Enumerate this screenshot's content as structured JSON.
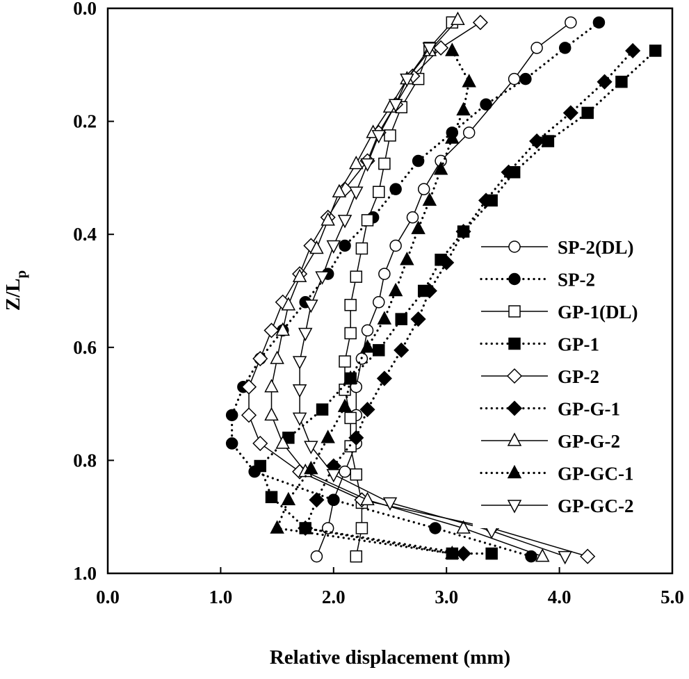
{
  "chart_data": {
    "type": "line",
    "title": "",
    "xlabel": "Relative displacement (mm)",
    "ylabel_main": "Z/L",
    "ylabel_sub": "p",
    "xlim": [
      0.0,
      5.0
    ],
    "ylim": [
      0.0,
      1.0
    ],
    "y_inverted": true,
    "x_axis_position": "bottom",
    "grid": false,
    "legend_position": "right",
    "xticks": [
      {
        "value": 0.0,
        "label": "0.0"
      },
      {
        "value": 1.0,
        "label": "1.0"
      },
      {
        "value": 2.0,
        "label": "2.0"
      },
      {
        "value": 3.0,
        "label": "3.0"
      },
      {
        "value": 4.0,
        "label": "4.0"
      },
      {
        "value": 5.0,
        "label": "5.0"
      }
    ],
    "yticks": [
      {
        "value": 0.0,
        "label": "0.0"
      },
      {
        "value": 0.2,
        "label": "0.2"
      },
      {
        "value": 0.4,
        "label": "0.4"
      },
      {
        "value": 0.6,
        "label": "0.6"
      },
      {
        "value": 0.8,
        "label": "0.8"
      },
      {
        "value": 1.0,
        "label": "1.0"
      }
    ],
    "series": [
      {
        "name": "SP-2(DL)",
        "marker": "circle",
        "fill": "open",
        "line": "solid",
        "points": [
          [
            4.1,
            0.025
          ],
          [
            3.8,
            0.07
          ],
          [
            3.6,
            0.125
          ],
          [
            3.2,
            0.22
          ],
          [
            2.95,
            0.27
          ],
          [
            2.8,
            0.32
          ],
          [
            2.7,
            0.37
          ],
          [
            2.55,
            0.42
          ],
          [
            2.45,
            0.47
          ],
          [
            2.4,
            0.52
          ],
          [
            2.3,
            0.57
          ],
          [
            2.25,
            0.62
          ],
          [
            2.2,
            0.67
          ],
          [
            2.2,
            0.72
          ],
          [
            2.2,
            0.77
          ],
          [
            2.1,
            0.82
          ],
          [
            2.0,
            0.87
          ],
          [
            1.95,
            0.92
          ],
          [
            1.85,
            0.97
          ]
        ]
      },
      {
        "name": "SP-2",
        "marker": "circle",
        "fill": "filled",
        "line": "dotted",
        "points": [
          [
            4.35,
            0.025
          ],
          [
            4.05,
            0.07
          ],
          [
            3.7,
            0.125
          ],
          [
            3.35,
            0.17
          ],
          [
            3.05,
            0.22
          ],
          [
            2.75,
            0.27
          ],
          [
            2.55,
            0.32
          ],
          [
            2.35,
            0.37
          ],
          [
            2.1,
            0.42
          ],
          [
            1.95,
            0.47
          ],
          [
            1.75,
            0.52
          ],
          [
            1.55,
            0.57
          ],
          [
            1.35,
            0.62
          ],
          [
            1.2,
            0.67
          ],
          [
            1.1,
            0.72
          ],
          [
            1.1,
            0.77
          ],
          [
            1.3,
            0.82
          ],
          [
            2.0,
            0.87
          ],
          [
            2.9,
            0.92
          ],
          [
            3.75,
            0.97
          ]
        ]
      },
      {
        "name": "GP-1(DL)",
        "marker": "square",
        "fill": "open",
        "line": "solid",
        "points": [
          [
            3.05,
            0.025
          ],
          [
            2.85,
            0.07
          ],
          [
            2.75,
            0.125
          ],
          [
            2.6,
            0.175
          ],
          [
            2.5,
            0.225
          ],
          [
            2.45,
            0.275
          ],
          [
            2.4,
            0.325
          ],
          [
            2.3,
            0.375
          ],
          [
            2.25,
            0.425
          ],
          [
            2.2,
            0.475
          ],
          [
            2.15,
            0.525
          ],
          [
            2.15,
            0.575
          ],
          [
            2.1,
            0.625
          ],
          [
            2.1,
            0.675
          ],
          [
            2.15,
            0.725
          ],
          [
            2.15,
            0.775
          ],
          [
            2.2,
            0.825
          ],
          [
            2.25,
            0.875
          ],
          [
            2.25,
            0.92
          ],
          [
            2.2,
            0.97
          ]
        ]
      },
      {
        "name": "GP-1",
        "marker": "square",
        "fill": "filled",
        "line": "dotted",
        "points": [
          [
            4.85,
            0.075
          ],
          [
            4.55,
            0.13
          ],
          [
            4.25,
            0.185
          ],
          [
            3.9,
            0.235
          ],
          [
            3.6,
            0.29
          ],
          [
            3.4,
            0.34
          ],
          [
            3.15,
            0.395
          ],
          [
            2.95,
            0.445
          ],
          [
            2.8,
            0.5
          ],
          [
            2.6,
            0.55
          ],
          [
            2.4,
            0.605
          ],
          [
            2.15,
            0.655
          ],
          [
            1.9,
            0.71
          ],
          [
            1.6,
            0.76
          ],
          [
            1.35,
            0.81
          ],
          [
            1.45,
            0.865
          ],
          [
            1.75,
            0.92
          ],
          [
            3.05,
            0.965
          ],
          [
            3.4,
            0.965
          ]
        ]
      },
      {
        "name": "GP-2",
        "marker": "diamond",
        "fill": "open",
        "line": "solid",
        "points": [
          [
            3.3,
            0.025
          ],
          [
            2.95,
            0.07
          ],
          [
            2.7,
            0.12
          ],
          [
            2.55,
            0.17
          ],
          [
            2.4,
            0.22
          ],
          [
            2.3,
            0.27
          ],
          [
            2.1,
            0.32
          ],
          [
            1.95,
            0.37
          ],
          [
            1.8,
            0.42
          ],
          [
            1.7,
            0.47
          ],
          [
            1.55,
            0.52
          ],
          [
            1.45,
            0.57
          ],
          [
            1.35,
            0.62
          ],
          [
            1.25,
            0.67
          ],
          [
            1.25,
            0.72
          ],
          [
            1.35,
            0.77
          ],
          [
            1.7,
            0.82
          ],
          [
            2.25,
            0.87
          ],
          [
            3.4,
            0.92
          ],
          [
            4.25,
            0.97
          ]
        ]
      },
      {
        "name": "GP-G-1",
        "marker": "diamond",
        "fill": "filled",
        "line": "dotted",
        "points": [
          [
            4.65,
            0.075
          ],
          [
            4.4,
            0.13
          ],
          [
            4.1,
            0.185
          ],
          [
            3.8,
            0.235
          ],
          [
            3.55,
            0.29
          ],
          [
            3.35,
            0.34
          ],
          [
            3.15,
            0.395
          ],
          [
            3.0,
            0.45
          ],
          [
            2.85,
            0.5
          ],
          [
            2.75,
            0.55
          ],
          [
            2.6,
            0.605
          ],
          [
            2.45,
            0.655
          ],
          [
            2.3,
            0.71
          ],
          [
            2.2,
            0.76
          ],
          [
            2.0,
            0.81
          ],
          [
            1.85,
            0.87
          ],
          [
            1.75,
            0.92
          ],
          [
            3.15,
            0.965
          ]
        ]
      },
      {
        "name": "GP-G-2",
        "marker": "triangle-up",
        "fill": "open",
        "line": "solid",
        "points": [
          [
            3.1,
            0.02
          ],
          [
            2.85,
            0.075
          ],
          [
            2.65,
            0.125
          ],
          [
            2.5,
            0.175
          ],
          [
            2.35,
            0.22
          ],
          [
            2.2,
            0.275
          ],
          [
            2.05,
            0.325
          ],
          [
            1.95,
            0.375
          ],
          [
            1.85,
            0.425
          ],
          [
            1.7,
            0.475
          ],
          [
            1.6,
            0.525
          ],
          [
            1.55,
            0.57
          ],
          [
            1.5,
            0.62
          ],
          [
            1.45,
            0.67
          ],
          [
            1.45,
            0.72
          ],
          [
            1.55,
            0.77
          ],
          [
            1.75,
            0.82
          ],
          [
            2.3,
            0.87
          ],
          [
            3.15,
            0.92
          ],
          [
            3.85,
            0.97
          ]
        ]
      },
      {
        "name": "GP-GC-1",
        "marker": "triangle-up",
        "fill": "filled",
        "line": "dotted",
        "points": [
          [
            3.05,
            0.075
          ],
          [
            3.2,
            0.13
          ],
          [
            3.15,
            0.18
          ],
          [
            3.05,
            0.23
          ],
          [
            2.95,
            0.285
          ],
          [
            2.85,
            0.34
          ],
          [
            2.75,
            0.39
          ],
          [
            2.65,
            0.445
          ],
          [
            2.55,
            0.5
          ],
          [
            2.45,
            0.55
          ],
          [
            2.3,
            0.6
          ],
          [
            2.15,
            0.655
          ],
          [
            2.1,
            0.705
          ],
          [
            1.95,
            0.76
          ],
          [
            1.8,
            0.815
          ],
          [
            1.6,
            0.87
          ],
          [
            1.5,
            0.92
          ],
          [
            3.05,
            0.965
          ]
        ]
      },
      {
        "name": "GP-GC-2",
        "marker": "triangle-down",
        "fill": "open",
        "line": "solid",
        "points": [
          [
            2.85,
            0.07
          ],
          [
            2.65,
            0.125
          ],
          [
            2.55,
            0.17
          ],
          [
            2.4,
            0.225
          ],
          [
            2.3,
            0.275
          ],
          [
            2.2,
            0.325
          ],
          [
            2.1,
            0.375
          ],
          [
            2.0,
            0.42
          ],
          [
            1.9,
            0.475
          ],
          [
            1.8,
            0.525
          ],
          [
            1.75,
            0.575
          ],
          [
            1.7,
            0.625
          ],
          [
            1.7,
            0.675
          ],
          [
            1.7,
            0.725
          ],
          [
            1.8,
            0.775
          ],
          [
            2.0,
            0.825
          ],
          [
            2.5,
            0.875
          ],
          [
            3.4,
            0.925
          ],
          [
            4.05,
            0.97
          ]
        ]
      }
    ]
  }
}
